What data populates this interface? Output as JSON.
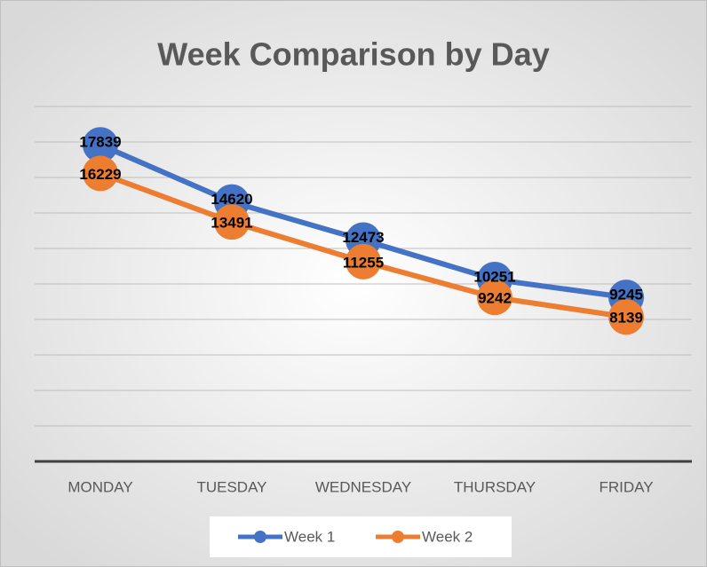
{
  "chart_data": {
    "type": "line",
    "title": "Week Comparison by Day",
    "categories": [
      "MONDAY",
      "TUESDAY",
      "WEDNESDAY",
      "THURSDAY",
      "FRIDAY"
    ],
    "series": [
      {
        "name": "Week 1",
        "color": "#4472c4",
        "values": [
          17839,
          14620,
          12473,
          10251,
          9245
        ]
      },
      {
        "name": "Week 2",
        "color": "#ed7d31",
        "values": [
          16229,
          13491,
          11255,
          9242,
          8139
        ]
      }
    ],
    "ylim": [
      0,
      20000
    ],
    "yticks": [
      0,
      2000,
      4000,
      6000,
      8000,
      10000,
      12000,
      14000,
      16000,
      18000,
      20000
    ],
    "grid": true,
    "legend": "bottom"
  }
}
